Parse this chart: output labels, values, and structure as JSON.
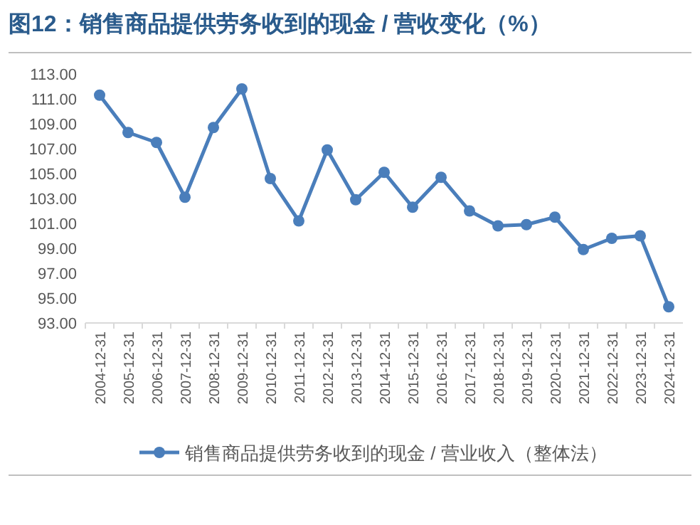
{
  "chart_data": {
    "type": "line",
    "title": "图12：销售商品提供劳务收到的现金 / 营收变化（%）",
    "categories": [
      "2004-12-31",
      "2005-12-31",
      "2006-12-31",
      "2007-12-31",
      "2008-12-31",
      "2009-12-31",
      "2010-12-31",
      "2011-12-31",
      "2012-12-31",
      "2013-12-31",
      "2014-12-31",
      "2015-12-31",
      "2016-12-31",
      "2017-12-31",
      "2018-12-31",
      "2019-12-31",
      "2020-12-31",
      "2021-12-31",
      "2022-12-31",
      "2023-12-31",
      "2024-12-31"
    ],
    "series": [
      {
        "name": "销售商品提供劳务收到的现金 / 营业收入（整体法）",
        "color": "#4a7ebb",
        "values": [
          111.3,
          108.3,
          107.5,
          103.1,
          108.7,
          111.8,
          104.6,
          101.2,
          106.9,
          102.9,
          105.1,
          102.3,
          104.7,
          102.0,
          100.8,
          100.9,
          101.5,
          98.9,
          99.8,
          100.0,
          94.3
        ]
      }
    ],
    "ylim": [
      93,
      113
    ],
    "yticks": [
      {
        "value": 93,
        "label": "93.00"
      },
      {
        "value": 95,
        "label": "95.00"
      },
      {
        "value": 97,
        "label": "97.00"
      },
      {
        "value": 99,
        "label": "99.00"
      },
      {
        "value": 101,
        "label": "101.00"
      },
      {
        "value": 103,
        "label": "103.00"
      },
      {
        "value": 105,
        "label": "105.00"
      },
      {
        "value": 107,
        "label": "107.00"
      },
      {
        "value": 109,
        "label": "109.00"
      },
      {
        "value": 111,
        "label": "111.00"
      },
      {
        "value": 113,
        "label": "113.00"
      }
    ],
    "grid": false,
    "legend": "bottom",
    "marker": "circle",
    "line_style": "solid"
  }
}
